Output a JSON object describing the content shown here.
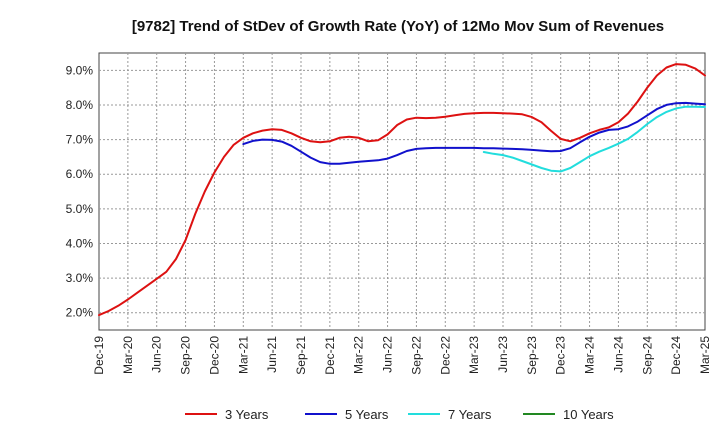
{
  "chart_data": {
    "type": "line",
    "title": "[9782]  Trend of StDev of Growth Rate (YoY) of 12Mo Mov Sum of Revenues",
    "xlabel": "",
    "ylabel": "",
    "ylim": [
      1.5,
      9.5
    ],
    "y_ticks": [
      2.0,
      3.0,
      4.0,
      5.0,
      6.0,
      7.0,
      8.0,
      9.0
    ],
    "y_tick_labels": [
      "2.0%",
      "3.0%",
      "4.0%",
      "5.0%",
      "6.0%",
      "7.0%",
      "8.0%",
      "9.0%"
    ],
    "x_range": [
      0,
      63
    ],
    "x_ticks": [
      0,
      3,
      6,
      9,
      12,
      15,
      18,
      21,
      24,
      27,
      30,
      33,
      36,
      39,
      42,
      45,
      48,
      51,
      54,
      57,
      60,
      63
    ],
    "x_tick_labels": [
      "Dec-19",
      "Mar-20",
      "Jun-20",
      "Sep-20",
      "Dec-20",
      "Mar-21",
      "Jun-21",
      "Sep-21",
      "Dec-21",
      "Mar-22",
      "Jun-22",
      "Sep-22",
      "Dec-22",
      "Mar-23",
      "Jun-23",
      "Sep-23",
      "Dec-23",
      "Mar-24",
      "Jun-24",
      "Sep-24",
      "Dec-24",
      "Mar-25"
    ],
    "grid": true,
    "legend_position": "bottom",
    "series": [
      {
        "name": "3 Years",
        "color": "#dd1111",
        "start": 0,
        "values": [
          1.93,
          2.05,
          2.2,
          2.38,
          2.58,
          2.78,
          2.98,
          3.18,
          3.55,
          4.1,
          4.85,
          5.5,
          6.05,
          6.5,
          6.85,
          7.05,
          7.18,
          7.26,
          7.3,
          7.28,
          7.18,
          7.05,
          6.95,
          6.92,
          6.95,
          7.05,
          7.08,
          7.05,
          6.95,
          6.98,
          7.15,
          7.42,
          7.58,
          7.63,
          7.62,
          7.63,
          7.66,
          7.7,
          7.74,
          7.76,
          7.77,
          7.77,
          7.76,
          7.75,
          7.73,
          7.65,
          7.5,
          7.25,
          7.02,
          6.95,
          7.05,
          7.18,
          7.28,
          7.35,
          7.5,
          7.75,
          8.1,
          8.5,
          8.85,
          9.08,
          9.18,
          9.16,
          9.05,
          8.85
        ]
      },
      {
        "name": "5 Years",
        "color": "#1111cc",
        "start": 15,
        "values": [
          6.87,
          6.96,
          7.0,
          6.99,
          6.94,
          6.82,
          6.65,
          6.48,
          6.35,
          6.3,
          6.3,
          6.33,
          6.36,
          6.38,
          6.4,
          6.45,
          6.55,
          6.67,
          6.73,
          6.75,
          6.76,
          6.76,
          6.76,
          6.76,
          6.76,
          6.75,
          6.75,
          6.74,
          6.73,
          6.72,
          6.7,
          6.68,
          6.66,
          6.67,
          6.75,
          6.92,
          7.08,
          7.2,
          7.28,
          7.3,
          7.38,
          7.52,
          7.7,
          7.88,
          8.0,
          8.05,
          8.06,
          8.04,
          8.02
        ]
      },
      {
        "name": "7 Years",
        "color": "#22dddd",
        "start": 40,
        "values": [
          6.64,
          6.59,
          6.55,
          6.48,
          6.38,
          6.28,
          6.18,
          6.1,
          6.08,
          6.18,
          6.35,
          6.52,
          6.65,
          6.76,
          6.88,
          7.02,
          7.22,
          7.45,
          7.65,
          7.8,
          7.9,
          7.95,
          7.95,
          7.94
        ]
      },
      {
        "name": "10 Years",
        "color": "#228822",
        "start": 0,
        "values": []
      }
    ]
  }
}
